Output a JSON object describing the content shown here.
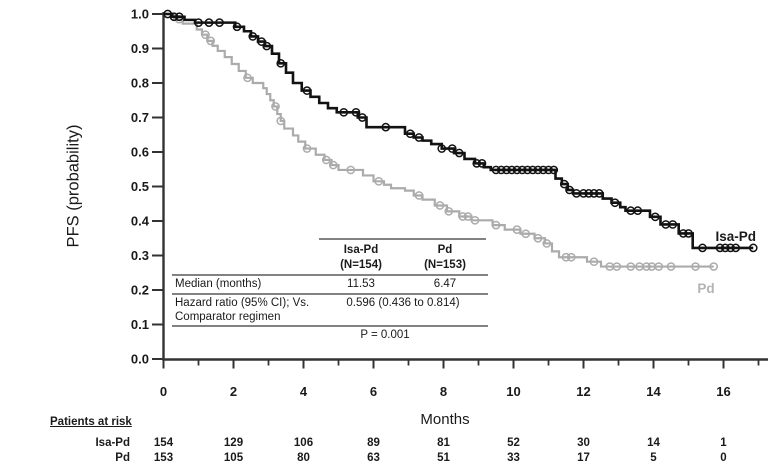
{
  "chart_data": {
    "type": "line",
    "subtype": "kaplan_meier_step",
    "title": "",
    "xlabel": "Months",
    "ylabel": "PFS (probability)",
    "xlim": [
      0,
      17.3
    ],
    "ylim": [
      0.0,
      1.0
    ],
    "grid": false,
    "x_major_ticks": [
      "0",
      "2",
      "4",
      "6",
      "8",
      "10",
      "12",
      "14",
      "16"
    ],
    "x_minor_ticks": [
      1,
      3,
      5,
      7,
      9,
      11,
      13,
      15,
      17
    ],
    "y_ticks": [
      "1.0",
      "0.9",
      "0.8",
      "0.7",
      "0.6",
      "0.5",
      "0.4",
      "0.3",
      "0.2",
      "0.1",
      "0.0"
    ],
    "series": [
      {
        "name": "Pd",
        "n_label": "(N=153)",
        "color": "#ababab",
        "label_color": "#b3b3b3",
        "line_width": 2.2,
        "label_pos": [
          15.5,
          0.205
        ],
        "end_month": 15.72,
        "steps": [
          [
            0,
            1.0
          ],
          [
            0.3,
            0.985
          ],
          [
            0.55,
            0.972
          ],
          [
            0.95,
            0.955
          ],
          [
            1.1,
            0.94
          ],
          [
            1.25,
            0.922
          ],
          [
            1.4,
            0.908
          ],
          [
            1.55,
            0.893
          ],
          [
            1.75,
            0.875
          ],
          [
            1.95,
            0.855
          ],
          [
            2.15,
            0.835
          ],
          [
            2.35,
            0.815
          ],
          [
            2.55,
            0.8
          ],
          [
            2.85,
            0.785
          ],
          [
            2.95,
            0.768
          ],
          [
            3.05,
            0.75
          ],
          [
            3.15,
            0.732
          ],
          [
            3.25,
            0.71
          ],
          [
            3.35,
            0.69
          ],
          [
            3.45,
            0.668
          ],
          [
            3.7,
            0.648
          ],
          [
            3.85,
            0.63
          ],
          [
            4.05,
            0.61
          ],
          [
            4.35,
            0.592
          ],
          [
            4.6,
            0.577
          ],
          [
            4.8,
            0.562
          ],
          [
            5.0,
            0.548
          ],
          [
            5.7,
            0.532
          ],
          [
            6.0,
            0.515
          ],
          [
            6.3,
            0.505
          ],
          [
            6.5,
            0.495
          ],
          [
            6.9,
            0.488
          ],
          [
            7.15,
            0.474
          ],
          [
            7.4,
            0.462
          ],
          [
            7.75,
            0.445
          ],
          [
            8.1,
            0.428
          ],
          [
            8.45,
            0.413
          ],
          [
            8.8,
            0.402
          ],
          [
            9.4,
            0.388
          ],
          [
            9.75,
            0.375
          ],
          [
            10.2,
            0.363
          ],
          [
            10.6,
            0.35
          ],
          [
            10.9,
            0.335
          ],
          [
            11.1,
            0.312
          ],
          [
            11.3,
            0.295
          ],
          [
            12.1,
            0.282
          ],
          [
            12.5,
            0.268
          ]
        ],
        "censor_months": [
          0.45,
          1.2,
          1.35,
          2.4,
          3.2,
          3.35,
          4.1,
          4.65,
          4.85,
          5.35,
          6.15,
          7.3,
          7.9,
          8.15,
          8.55,
          8.7,
          8.9,
          9.5,
          10.1,
          10.35,
          10.7,
          10.95,
          11.5,
          11.65,
          12.3,
          12.75,
          12.95,
          13.35,
          13.6,
          13.8,
          13.95,
          14.15,
          14.5,
          15.2,
          15.72
        ]
      },
      {
        "name": "Isa-Pd",
        "n_label": "(N=154)",
        "color": "#121212",
        "label_color": "#1a1a1a",
        "line_width": 2.6,
        "label_pos": [
          16.35,
          0.355
        ],
        "end_month": 16.85,
        "steps": [
          [
            0,
            1.0
          ],
          [
            0.25,
            0.992
          ],
          [
            0.6,
            0.983
          ],
          [
            0.9,
            0.975
          ],
          [
            2.05,
            0.963
          ],
          [
            2.3,
            0.95
          ],
          [
            2.5,
            0.935
          ],
          [
            2.7,
            0.92
          ],
          [
            2.9,
            0.907
          ],
          [
            3.1,
            0.885
          ],
          [
            3.3,
            0.857
          ],
          [
            3.5,
            0.83
          ],
          [
            3.7,
            0.8
          ],
          [
            3.95,
            0.778
          ],
          [
            4.2,
            0.76
          ],
          [
            4.45,
            0.742
          ],
          [
            4.7,
            0.727
          ],
          [
            4.95,
            0.715
          ],
          [
            5.55,
            0.7
          ],
          [
            5.8,
            0.672
          ],
          [
            6.9,
            0.653
          ],
          [
            7.15,
            0.642
          ],
          [
            7.4,
            0.633
          ],
          [
            7.65,
            0.623
          ],
          [
            7.95,
            0.61
          ],
          [
            8.3,
            0.597
          ],
          [
            8.6,
            0.58
          ],
          [
            8.9,
            0.567
          ],
          [
            9.15,
            0.556
          ],
          [
            9.35,
            0.548
          ],
          [
            11.2,
            0.523
          ],
          [
            11.38,
            0.507
          ],
          [
            11.55,
            0.49
          ],
          [
            11.7,
            0.48
          ],
          [
            12.55,
            0.465
          ],
          [
            12.8,
            0.453
          ],
          [
            13.05,
            0.44
          ],
          [
            13.2,
            0.43
          ],
          [
            13.9,
            0.412
          ],
          [
            14.2,
            0.39
          ],
          [
            14.72,
            0.364
          ],
          [
            15.12,
            0.322
          ]
        ],
        "censor_months": [
          0.12,
          0.3,
          0.45,
          1.0,
          1.3,
          1.6,
          2.1,
          2.55,
          2.8,
          2.95,
          3.35,
          4.1,
          5.15,
          5.5,
          5.68,
          6.35,
          7.05,
          7.3,
          7.95,
          8.25,
          8.45,
          8.95,
          9.1,
          9.5,
          9.65,
          9.8,
          9.95,
          10.1,
          10.25,
          10.4,
          10.55,
          10.7,
          10.85,
          11.0,
          11.15,
          11.45,
          11.6,
          11.8,
          12.0,
          12.15,
          12.3,
          12.45,
          12.9,
          13.35,
          13.55,
          14.05,
          14.35,
          14.55,
          14.85,
          15.0,
          15.4,
          15.9,
          16.05,
          16.2,
          16.35,
          16.85
        ]
      }
    ],
    "stats_table": {
      "columns": [
        {
          "name": "Isa-Pd",
          "n": "(N=154)"
        },
        {
          "name": "Pd",
          "n": "(N=153)"
        }
      ],
      "median_label": "Median (months)",
      "median_values": [
        "11.53",
        "6.47"
      ],
      "hr_label_line1": "Hazard ratio (95% CI); Vs.",
      "hr_label_line2": "Comparator regimen",
      "hr_value": "0.596 (0.436 to 0.814)",
      "p_value": "P = 0.001"
    },
    "risk_table": {
      "title": "Patients at risk",
      "time_points": [
        0,
        2,
        4,
        6,
        8,
        10,
        12,
        14,
        16
      ],
      "rows": [
        {
          "label": "Isa-Pd",
          "counts": [
            "154",
            "129",
            "106",
            "89",
            "81",
            "52",
            "30",
            "14",
            "1"
          ]
        },
        {
          "label": "Pd",
          "counts": [
            "153",
            "105",
            "80",
            "63",
            "51",
            "33",
            "17",
            "5",
            "0"
          ]
        }
      ]
    }
  }
}
